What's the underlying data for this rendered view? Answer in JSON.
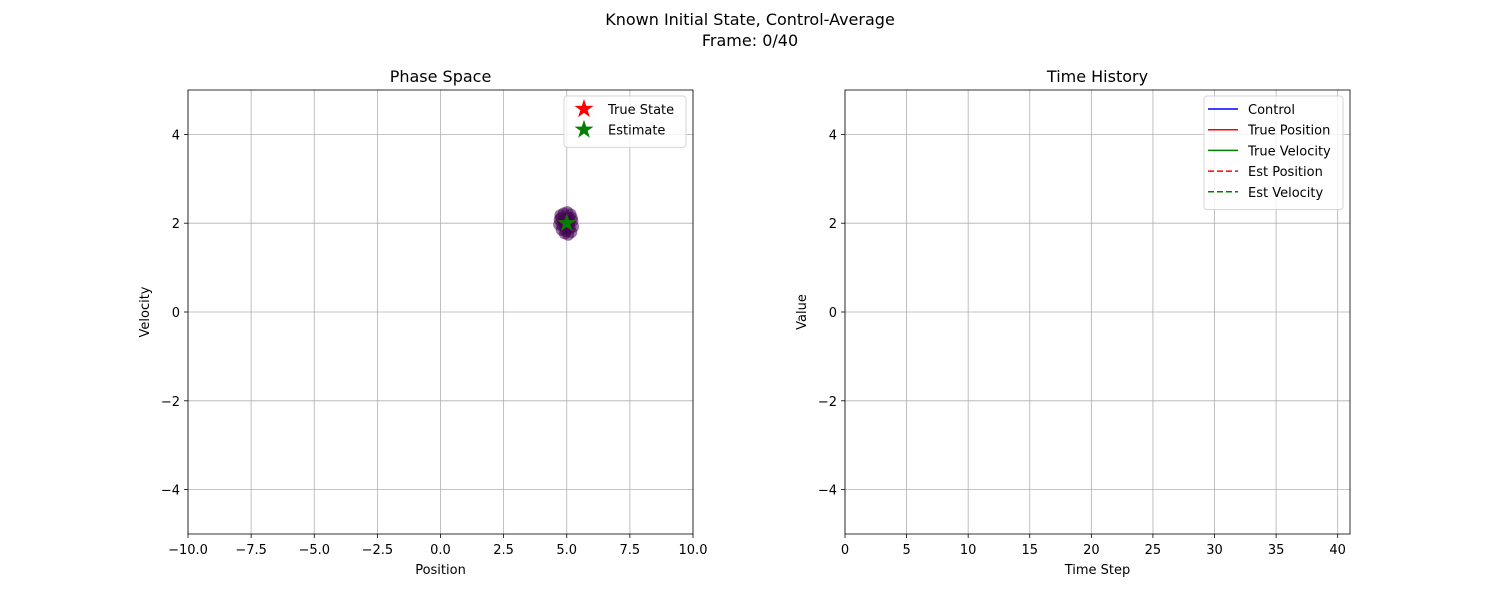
{
  "figure": {
    "title_line1": "Known Initial State, Control-Average",
    "title_line2": "Frame: 0/40"
  },
  "chart_data": [
    {
      "type": "scatter",
      "title": "Phase Space",
      "xlabel": "Position",
      "ylabel": "Velocity",
      "xlim": [
        -10,
        10
      ],
      "ylim": [
        -5,
        5
      ],
      "xticks": [
        -10,
        -7.5,
        -5,
        -2.5,
        0,
        2.5,
        5,
        7.5,
        10
      ],
      "xtick_labels": [
        "−10.0",
        "−7.5",
        "−5.0",
        "−2.5",
        "0.0",
        "2.5",
        "5.0",
        "7.5",
        "10.0"
      ],
      "yticks": [
        -4,
        -2,
        0,
        2,
        4
      ],
      "ytick_labels": [
        "−4",
        "−2",
        "0",
        "2",
        "4"
      ],
      "grid": true,
      "legend_position": "top-right",
      "particle_color": "#440154",
      "particles": [
        [
          4.75,
          2.18
        ],
        [
          4.88,
          2.22
        ],
        [
          5.02,
          2.25
        ],
        [
          5.15,
          2.2
        ],
        [
          5.22,
          2.05
        ],
        [
          5.25,
          1.92
        ],
        [
          5.18,
          1.8
        ],
        [
          5.06,
          1.74
        ],
        [
          4.92,
          1.77
        ],
        [
          4.8,
          1.85
        ],
        [
          4.7,
          1.97
        ],
        [
          4.72,
          2.08
        ],
        [
          4.85,
          2.05
        ],
        [
          5.0,
          2.1
        ],
        [
          5.1,
          2.0
        ],
        [
          4.95,
          1.9
        ],
        [
          5.05,
          1.95
        ],
        [
          4.9,
          2.0
        ],
        [
          5.12,
          1.88
        ],
        [
          4.82,
          1.95
        ],
        [
          5.08,
          2.12
        ],
        [
          4.97,
          1.82
        ],
        [
          5.2,
          2.12
        ],
        [
          4.78,
          2.12
        ]
      ],
      "series": [
        {
          "name": "True State",
          "marker": "star",
          "color": "#ff0000",
          "points": [
            [
              5.0,
              2.0
            ]
          ]
        },
        {
          "name": "Estimate",
          "marker": "star",
          "color": "#008000",
          "points": [
            [
              5.0,
              2.0
            ]
          ]
        }
      ]
    },
    {
      "type": "line",
      "title": "Time History",
      "xlabel": "Time Step",
      "ylabel": "Value",
      "xlim": [
        0,
        41
      ],
      "ylim": [
        -5,
        5
      ],
      "xticks": [
        0,
        5,
        10,
        15,
        20,
        25,
        30,
        35,
        40
      ],
      "xtick_labels": [
        "0",
        "5",
        "10",
        "15",
        "20",
        "25",
        "30",
        "35",
        "40"
      ],
      "yticks": [
        -4,
        -2,
        0,
        2,
        4
      ],
      "ytick_labels": [
        "−4",
        "−2",
        "0",
        "2",
        "4"
      ],
      "grid": true,
      "legend_position": "top-right",
      "series": [
        {
          "name": "Control",
          "color": "#0000ff",
          "linestyle": "solid",
          "x": [],
          "y": []
        },
        {
          "name": "True Position",
          "color": "#ff0000",
          "linestyle": "solid",
          "x": [],
          "y": []
        },
        {
          "name": "True Velocity",
          "color": "#008000",
          "linestyle": "solid",
          "x": [],
          "y": []
        },
        {
          "name": "Est Position",
          "color": "#ff0000",
          "linestyle": "dashed",
          "x": [],
          "y": []
        },
        {
          "name": "Est Velocity",
          "color": "#008000",
          "linestyle": "dashed",
          "x": [],
          "y": []
        }
      ]
    }
  ]
}
